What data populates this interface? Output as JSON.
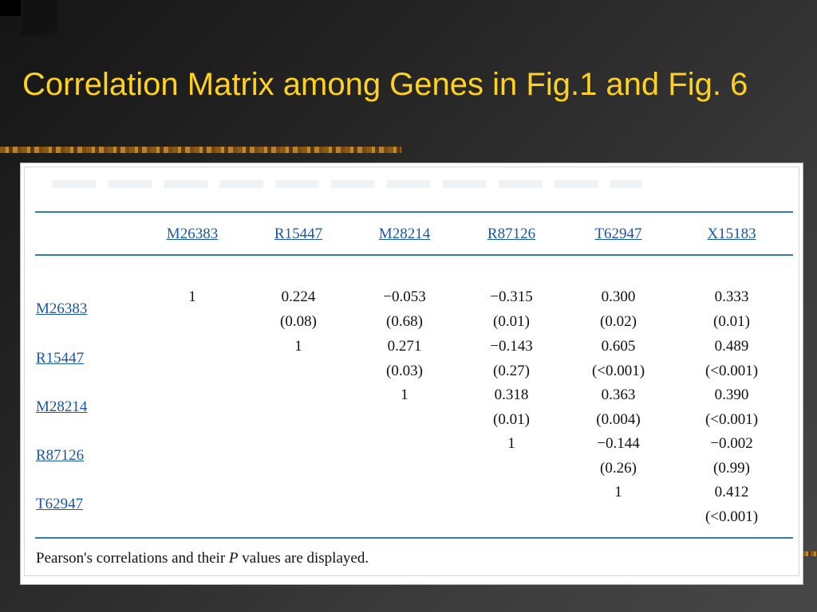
{
  "slide": {
    "title": "Correlation Matrix among Genes in Fig.1 and Fig. 6",
    "title_color": "#ffd21f"
  },
  "table": {
    "columns": [
      "M26383",
      "R15447",
      "M28214",
      "R87126",
      "T62947",
      "X15183"
    ],
    "rows": [
      {
        "label": "M26383",
        "cells": [
          {
            "r": "1",
            "p": ""
          },
          {
            "r": "0.224",
            "p": "(0.08)"
          },
          {
            "r": "−0.053",
            "p": "(0.68)"
          },
          {
            "r": "−0.315",
            "p": "(0.01)"
          },
          {
            "r": "0.300",
            "p": "(0.02)"
          },
          {
            "r": "0.333",
            "p": "(0.01)"
          }
        ]
      },
      {
        "label": "R15447",
        "cells": [
          {
            "r": "",
            "p": ""
          },
          {
            "r": "1",
            "p": ""
          },
          {
            "r": "0.271",
            "p": "(0.03)"
          },
          {
            "r": "−0.143",
            "p": "(0.27)"
          },
          {
            "r": "0.605",
            "p": "(<0.001)"
          },
          {
            "r": "0.489",
            "p": "(<0.001)"
          }
        ]
      },
      {
        "label": "M28214",
        "cells": [
          {
            "r": "",
            "p": ""
          },
          {
            "r": "",
            "p": ""
          },
          {
            "r": "1",
            "p": ""
          },
          {
            "r": "0.318",
            "p": "(0.01)"
          },
          {
            "r": "0.363",
            "p": "(0.004)"
          },
          {
            "r": "0.390",
            "p": "(<0.001)"
          }
        ]
      },
      {
        "label": "R87126",
        "cells": [
          {
            "r": "",
            "p": ""
          },
          {
            "r": "",
            "p": ""
          },
          {
            "r": "",
            "p": ""
          },
          {
            "r": "1",
            "p": ""
          },
          {
            "r": "−0.144",
            "p": "(0.26)"
          },
          {
            "r": "−0.002",
            "p": "(0.99)"
          }
        ]
      },
      {
        "label": "T62947",
        "cells": [
          {
            "r": "",
            "p": ""
          },
          {
            "r": "",
            "p": ""
          },
          {
            "r": "",
            "p": ""
          },
          {
            "r": "",
            "p": ""
          },
          {
            "r": "1",
            "p": ""
          },
          {
            "r": "0.412",
            "p": "(<0.001)"
          }
        ]
      }
    ],
    "footnote_before": "Pearson's correlations and their ",
    "footnote_italic": "P",
    "footnote_after": " values are displayed.",
    "rule_color": "#2f7fa6",
    "link_color": "#1a56a6"
  }
}
